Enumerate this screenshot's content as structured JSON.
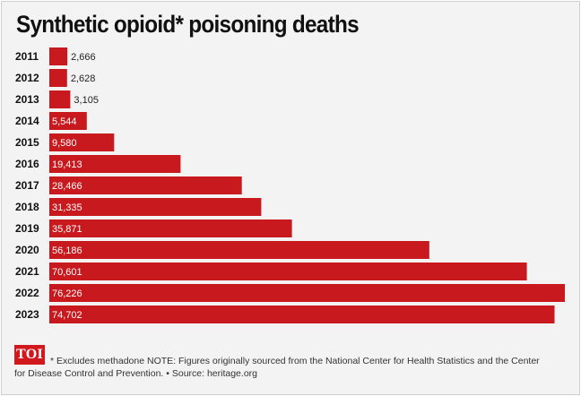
{
  "title": "Synthetic opioid* poisoning deaths",
  "logo_text": "TOI",
  "footnote": "* Excludes methadone NOTE: Figures originally sourced from the National Center for Health Statistics and the Center for Disease Control and Prevention. • Source: heritage.org",
  "colors": {
    "bar": "#c8191e",
    "label_inside": "#ffffff",
    "label_outside": "#222222",
    "background": "#f3f3f3",
    "logo": "#d0181e"
  },
  "chart_data": {
    "type": "bar",
    "orientation": "horizontal",
    "title": "Synthetic opioid* poisoning deaths",
    "categories": [
      "2011",
      "2012",
      "2013",
      "2014",
      "2015",
      "2016",
      "2017",
      "2018",
      "2019",
      "2020",
      "2021",
      "2022",
      "2023"
    ],
    "values": [
      2666,
      2628,
      3105,
      5544,
      9580,
      19413,
      28466,
      31335,
      35871,
      56186,
      70601,
      76226,
      74702
    ],
    "value_labels": [
      "2,666",
      "2,628",
      "3,105",
      "5,544",
      "9,580",
      "19,413",
      "28,466",
      "31,335",
      "35,871",
      "56,186",
      "70,601",
      "76,226",
      "74,702"
    ],
    "xlim": [
      0,
      76226
    ],
    "grid": false,
    "legend": "none"
  }
}
